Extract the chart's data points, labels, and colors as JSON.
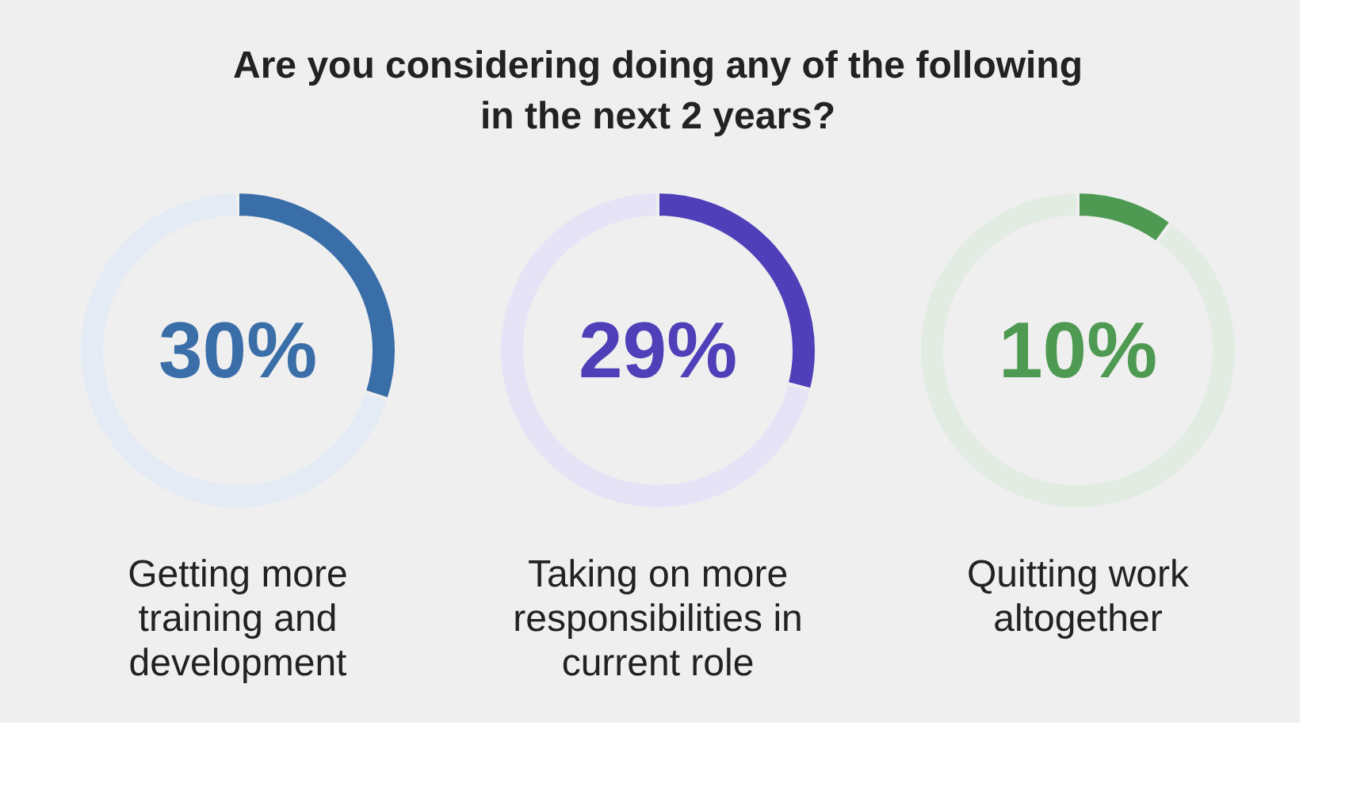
{
  "chart_data": [
    {
      "type": "donut",
      "title": "Are you considering doing any of the following in the next 2 years?",
      "xlabel": "Getting more training and development",
      "categories": [
        null,
        null
      ],
      "values": [
        30,
        70
      ],
      "colors": [
        "#3a6ea8",
        "#e4ebf4"
      ],
      "value_labels": [
        "30%",
        null
      ]
    },
    {
      "type": "donut",
      "xlabel": "Taking on more responsibilities in current role",
      "categories": [
        null,
        null
      ],
      "values": [
        29,
        71
      ],
      "colors": [
        "#4f3fb8",
        "#e6e3f6"
      ],
      "value_labels": [
        "29%",
        null
      ]
    },
    {
      "type": "donut",
      "xlabel": "Quitting work altogether",
      "categories": [
        null,
        null
      ],
      "values": [
        10,
        90
      ],
      "colors": [
        "#4e9a52",
        "#e3ece3"
      ],
      "value_labels": [
        "10%",
        null
      ]
    }
  ]
}
